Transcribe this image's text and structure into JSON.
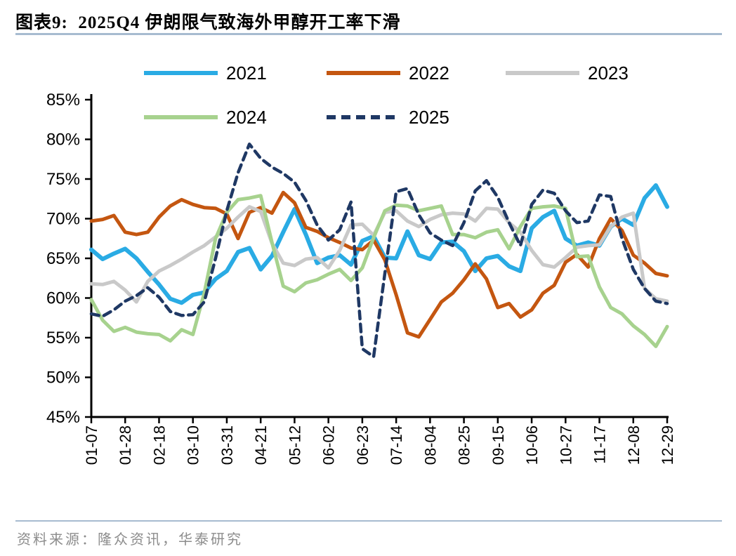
{
  "title": "图表9:  2025Q4 伊朗限气致海外甲醇开工率下滑",
  "source": "资料来源：隆众资讯，华泰研究",
  "rule_color": "#a7bbd0",
  "chart_data": {
    "type": "line",
    "title": "",
    "xlabel": "",
    "ylabel": "",
    "ylim": [
      45,
      85
    ],
    "ytick_step": 5,
    "ytick_suffix": "%",
    "grid": false,
    "legend_position": "top",
    "x_tick_labels": [
      "01-07",
      "01-28",
      "02-18",
      "03-10",
      "03-31",
      "04-21",
      "05-12",
      "06-02",
      "06-23",
      "07-14",
      "08-04",
      "08-25",
      "09-15",
      "10-06",
      "10-27",
      "11-17",
      "12-08",
      "12-29"
    ],
    "x": [
      "01-07",
      "01-14",
      "01-21",
      "01-28",
      "02-04",
      "02-11",
      "02-18",
      "02-25",
      "03-03",
      "03-10",
      "03-17",
      "03-24",
      "03-31",
      "04-07",
      "04-14",
      "04-21",
      "04-28",
      "05-05",
      "05-12",
      "05-19",
      "05-26",
      "06-02",
      "06-09",
      "06-16",
      "06-23",
      "06-30",
      "07-07",
      "07-14",
      "07-21",
      "07-28",
      "08-04",
      "08-11",
      "08-18",
      "08-25",
      "09-01",
      "09-08",
      "09-15",
      "09-22",
      "09-29",
      "10-06",
      "10-13",
      "10-20",
      "10-27",
      "11-03",
      "11-10",
      "11-17",
      "11-24",
      "12-01",
      "12-08",
      "12-15",
      "12-22",
      "12-29"
    ],
    "series": [
      {
        "name": "2021",
        "color": "#2aabe4",
        "style": "solid",
        "values": [
          66.1,
          64.9,
          65.6,
          66.2,
          65.0,
          63.3,
          61.7,
          59.9,
          59.4,
          60.4,
          60.7,
          62.4,
          63.4,
          65.8,
          66.3,
          63.6,
          65.3,
          68.3,
          71.2,
          68.0,
          64.4,
          65.1,
          65.4,
          64.2,
          67.2,
          67.8,
          65.1,
          65.0,
          68.4,
          65.4,
          64.9,
          67.0,
          67.1,
          65.9,
          63.4,
          65.0,
          65.3,
          64.0,
          63.4,
          68.8,
          70.2,
          71.0,
          67.5,
          66.6,
          67.0,
          66.6,
          69.0,
          70.0,
          69.2,
          72.6,
          74.2,
          71.5
        ]
      },
      {
        "name": "2022",
        "color": "#c45610",
        "style": "solid",
        "values": [
          69.7,
          69.9,
          70.4,
          68.3,
          68.0,
          68.3,
          70.2,
          71.6,
          72.4,
          71.8,
          71.4,
          71.3,
          70.6,
          67.5,
          70.8,
          71.4,
          70.7,
          73.3,
          72.0,
          68.9,
          68.4,
          67.6,
          67.0,
          66.3,
          66.1,
          67.3,
          64.8,
          60.4,
          55.6,
          55.1,
          57.3,
          59.5,
          60.6,
          62.3,
          64.3,
          62.4,
          58.8,
          59.3,
          57.6,
          58.5,
          60.6,
          61.6,
          64.5,
          65.5,
          63.9,
          67.5,
          70.0,
          68.5,
          65.4,
          64.4,
          63.1,
          62.8
        ]
      },
      {
        "name": "2023",
        "color": "#c9c9c9",
        "style": "solid",
        "values": [
          61.8,
          61.7,
          62.1,
          61.0,
          59.5,
          62.1,
          63.4,
          64.1,
          64.9,
          65.8,
          66.6,
          67.7,
          68.8,
          70.2,
          71.5,
          70.9,
          66.9,
          64.4,
          64.1,
          64.9,
          65.1,
          63.8,
          66.0,
          69.2,
          69.3,
          67.9,
          70.8,
          71.0,
          69.7,
          69.0,
          69.9,
          70.5,
          70.7,
          70.6,
          69.7,
          71.3,
          71.2,
          69.5,
          68.3,
          66.0,
          64.2,
          63.9,
          65.1,
          66.4,
          66.6,
          66.7,
          69.0,
          70.2,
          70.7,
          61.2,
          59.9,
          59.6
        ]
      },
      {
        "name": "2024",
        "color": "#a7d28e",
        "style": "solid",
        "values": [
          59.8,
          57.2,
          55.8,
          56.3,
          55.7,
          55.5,
          55.4,
          54.6,
          56.0,
          55.4,
          60.6,
          67.5,
          70.8,
          72.4,
          72.6,
          72.9,
          67.0,
          61.5,
          60.8,
          61.9,
          62.3,
          63.0,
          63.6,
          62.2,
          63.8,
          67.6,
          71.0,
          71.7,
          71.6,
          71.0,
          71.3,
          71.6,
          68.0,
          68.0,
          67.6,
          68.3,
          68.6,
          66.2,
          69.0,
          71.3,
          71.5,
          71.6,
          71.3,
          65.2,
          65.3,
          61.4,
          58.8,
          58.0,
          56.5,
          55.4,
          53.9,
          56.4
        ]
      },
      {
        "name": "2025",
        "color": "#1f3864",
        "style": "dashed",
        "values": [
          58.0,
          57.7,
          58.5,
          59.6,
          60.3,
          61.3,
          60.1,
          58.3,
          57.8,
          57.9,
          59.5,
          65.0,
          71.0,
          75.8,
          79.4,
          77.6,
          76.5,
          75.7,
          74.6,
          72.3,
          69.2,
          67.3,
          68.6,
          72.1,
          53.6,
          52.6,
          63.1,
          73.4,
          73.8,
          70.5,
          68.2,
          67.3,
          66.6,
          69.5,
          73.5,
          74.8,
          72.7,
          69.5,
          66.6,
          71.8,
          73.6,
          73.2,
          71.0,
          69.5,
          69.7,
          73.0,
          72.8,
          67.5,
          63.6,
          61.2,
          59.6,
          59.3
        ]
      }
    ]
  }
}
